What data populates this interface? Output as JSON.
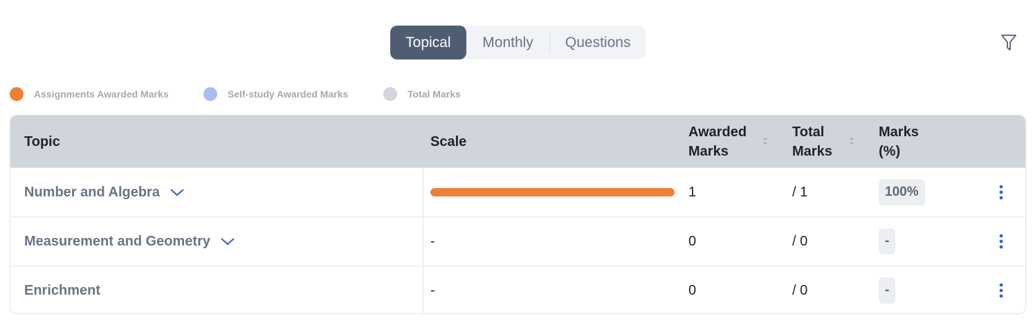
{
  "tabs": [
    {
      "label": "Topical",
      "active": true
    },
    {
      "label": "Monthly",
      "active": false
    },
    {
      "label": "Questions",
      "active": false
    }
  ],
  "filter_icon": "filter-funnel-icon",
  "legend": [
    {
      "label": "Assignments Awarded Marks",
      "color": "#ef7f33"
    },
    {
      "label": "Self-study Awarded Marks",
      "color": "#a8bdf0"
    },
    {
      "label": "Total Marks",
      "color": "#d2d6dc"
    }
  ],
  "table": {
    "headers": {
      "topic": "Topic",
      "scale": "Scale",
      "awarded_line1": "Awarded",
      "awarded_line2": "Marks",
      "total_line1": "Total",
      "total_line2": "Marks",
      "pct_line1": "Marks",
      "pct_line2": "(%)"
    },
    "rows": [
      {
        "topic": "Number and Algebra",
        "expandable": true,
        "scale_fraction": 1.0,
        "scale_text": "",
        "awarded": "1",
        "total": "/ 1",
        "percent": "100%"
      },
      {
        "topic": "Measurement and Geometry",
        "expandable": true,
        "scale_fraction": null,
        "scale_text": "-",
        "awarded": "0",
        "total": "/ 0",
        "percent": "-"
      },
      {
        "topic": "Enrichment",
        "expandable": false,
        "scale_fraction": null,
        "scale_text": "-",
        "awarded": "0",
        "total": "/ 0",
        "percent": "-"
      }
    ]
  }
}
